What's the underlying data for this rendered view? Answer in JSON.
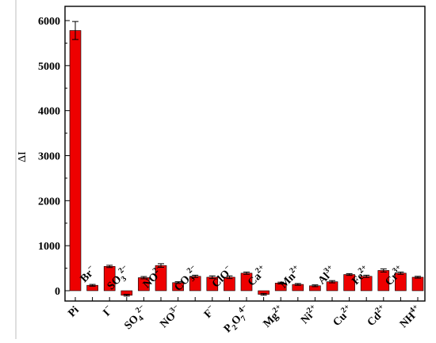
{
  "chart_data": {
    "type": "bar",
    "title": "",
    "xlabel": "",
    "ylabel": "ΔI",
    "ylim": [
      -100,
      6300
    ],
    "yticks": [
      0,
      1000,
      2000,
      3000,
      4000,
      5000,
      6000
    ],
    "grid": false,
    "bar_color": "#ee0000",
    "categories": [
      {
        "base": "Pi",
        "sup": "",
        "sub": "",
        "row": "low"
      },
      {
        "base": "Br",
        "sup": "−",
        "sub": "",
        "row": "high"
      },
      {
        "base": "I",
        "sup": "−",
        "sub": "",
        "row": "low"
      },
      {
        "base": "SO",
        "sub": "3",
        "sup": "2−",
        "row": "high"
      },
      {
        "base": "SO",
        "sub": "4",
        "sup": "2−",
        "row": "low"
      },
      {
        "base": "NO",
        "sup": "2−",
        "sub": "",
        "row": "high"
      },
      {
        "base": "NO",
        "sup": "3−",
        "sub": "",
        "row": "low"
      },
      {
        "base": "CO",
        "sub": "3",
        "sup": "2−",
        "row": "high"
      },
      {
        "base": "F",
        "sup": "−",
        "sub": "",
        "row": "low"
      },
      {
        "base": "ClO",
        "sup": "−",
        "sub": "",
        "row": "high"
      },
      {
        "base": "P",
        "text": "P2O74−",
        "special": "p2o7",
        "row": "low"
      },
      {
        "base": "Ca",
        "sup": "2+",
        "sub": "",
        "row": "high"
      },
      {
        "base": "Mg",
        "sup": "2+",
        "sub": "",
        "row": "low"
      },
      {
        "base": "Mn",
        "sup": "2+",
        "sub": "",
        "row": "high"
      },
      {
        "base": "Ni",
        "sup": "2+",
        "sub": "",
        "row": "low"
      },
      {
        "base": "Al",
        "sup": "3+",
        "sub": "",
        "row": "high"
      },
      {
        "base": "Cu",
        "sup": "2+",
        "sub": "",
        "row": "low"
      },
      {
        "base": "Fe",
        "sup": "2+",
        "sub": "",
        "row": "high"
      },
      {
        "base": "Cd",
        "sup": "2+",
        "sub": "",
        "row": "low"
      },
      {
        "base": "Cr",
        "sup": "3+",
        "sub": "",
        "row": "high"
      },
      {
        "base": "NH",
        "sup": "4+",
        "sub": "",
        "row": "low"
      }
    ],
    "values": [
      5780,
      120,
      540,
      -100,
      290,
      560,
      180,
      320,
      300,
      300,
      390,
      -80,
      170,
      140,
      110,
      200,
      360,
      320,
      450,
      390,
      300
    ],
    "errors": [
      200,
      20,
      25,
      20,
      25,
      40,
      20,
      25,
      30,
      30,
      25,
      20,
      20,
      20,
      20,
      25,
      20,
      25,
      35,
      25,
      20
    ]
  }
}
